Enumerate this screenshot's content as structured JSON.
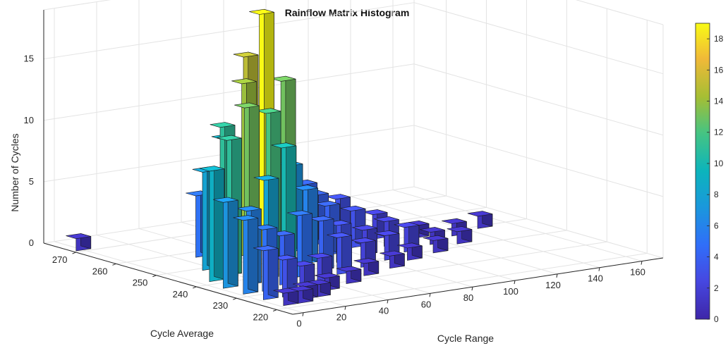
{
  "chart_data": {
    "type": "bar3d",
    "title": "Rainflow Matrix Histogram",
    "xlabel": "Cycle Range",
    "ylabel": "Cycle Average",
    "zlabel": "Number of Cycles",
    "x_ticks": [
      "0",
      "20",
      "40",
      "60",
      "80",
      "100",
      "120",
      "140",
      "160"
    ],
    "y_ticks": [
      "220",
      "230",
      "240",
      "250",
      "260",
      "270"
    ],
    "z_ticks": [
      "0",
      "5",
      "10",
      "15"
    ],
    "xlim": [
      -5,
      170
    ],
    "ylim": [
      216,
      278
    ],
    "zlim": [
      0,
      19
    ],
    "colorbar": {
      "ticks": [
        "0",
        "2",
        "4",
        "6",
        "8",
        "10",
        "12",
        "14",
        "16",
        "18"
      ],
      "range": [
        0,
        19
      ]
    },
    "grid": true,
    "bar_width": {
      "range": 7,
      "average": 2.5
    },
    "bars": [
      {
        "range": 5,
        "average": 223,
        "cycles": 1
      },
      {
        "range": 12,
        "average": 223,
        "cycles": 1
      },
      {
        "range": 18,
        "average": 225,
        "cycles": 1
      },
      {
        "range": 24,
        "average": 225,
        "cycles": 1
      },
      {
        "range": 34,
        "average": 228,
        "cycles": 1
      },
      {
        "range": 48,
        "average": 230,
        "cycles": 1
      },
      {
        "range": 62,
        "average": 233,
        "cycles": 1
      },
      {
        "range": 78,
        "average": 235,
        "cycles": 1
      },
      {
        "range": 92,
        "average": 238,
        "cycles": 1
      },
      {
        "range": 108,
        "average": 240,
        "cycles": 1
      },
      {
        "range": 125,
        "average": 243,
        "cycles": 1
      },
      {
        "range": 5,
        "average": 228,
        "cycles": 4
      },
      {
        "range": 14,
        "average": 228,
        "cycles": 3
      },
      {
        "range": 26,
        "average": 230,
        "cycles": 2
      },
      {
        "range": 40,
        "average": 233,
        "cycles": 2
      },
      {
        "range": 55,
        "average": 236,
        "cycles": 3
      },
      {
        "range": 70,
        "average": 238,
        "cycles": 2
      },
      {
        "range": 85,
        "average": 240,
        "cycles": 2
      },
      {
        "range": 100,
        "average": 243,
        "cycles": 2
      },
      {
        "range": 116,
        "average": 245,
        "cycles": 1
      },
      {
        "range": 132,
        "average": 248,
        "cycles": 1
      },
      {
        "range": 148,
        "average": 250,
        "cycles": 1
      },
      {
        "range": 5,
        "average": 233,
        "cycles": 6
      },
      {
        "range": 14,
        "average": 233,
        "cycles": 5
      },
      {
        "range": 26,
        "average": 235,
        "cycles": 4
      },
      {
        "range": 40,
        "average": 238,
        "cycles": 5
      },
      {
        "range": 54,
        "average": 240,
        "cycles": 4
      },
      {
        "range": 68,
        "average": 243,
        "cycles": 3
      },
      {
        "range": 84,
        "average": 245,
        "cycles": 2
      },
      {
        "range": 100,
        "average": 248,
        "cycles": 2
      },
      {
        "range": 118,
        "average": 250,
        "cycles": 1
      },
      {
        "range": 5,
        "average": 238,
        "cycles": 7
      },
      {
        "range": 16,
        "average": 238,
        "cycles": 6
      },
      {
        "range": 28,
        "average": 240,
        "cycles": 8
      },
      {
        "range": 42,
        "average": 243,
        "cycles": 10
      },
      {
        "range": 56,
        "average": 245,
        "cycles": 6
      },
      {
        "range": 72,
        "average": 248,
        "cycles": 4
      },
      {
        "range": 88,
        "average": 250,
        "cycles": 3
      },
      {
        "range": 104,
        "average": 253,
        "cycles": 2
      },
      {
        "range": 8,
        "average": 243,
        "cycles": 9
      },
      {
        "range": 20,
        "average": 245,
        "cycles": 11
      },
      {
        "range": 34,
        "average": 248,
        "cycles": 13
      },
      {
        "range": 48,
        "average": 250,
        "cycles": 12
      },
      {
        "range": 64,
        "average": 253,
        "cycles": 7
      },
      {
        "range": 80,
        "average": 255,
        "cycles": 4
      },
      {
        "range": 96,
        "average": 258,
        "cycles": 3
      },
      {
        "range": 18,
        "average": 250,
        "cycles": 8
      },
      {
        "range": 32,
        "average": 253,
        "cycles": 11
      },
      {
        "range": 46,
        "average": 255,
        "cycles": 14
      },
      {
        "range": 60,
        "average": 258,
        "cycles": 19
      },
      {
        "range": 74,
        "average": 260,
        "cycles": 13
      },
      {
        "range": 88,
        "average": 262,
        "cycles": 4
      },
      {
        "range": 30,
        "average": 258,
        "cycles": 5
      },
      {
        "range": 46,
        "average": 260,
        "cycles": 9
      },
      {
        "range": 62,
        "average": 263,
        "cycles": 15
      },
      {
        "range": 76,
        "average": 265,
        "cycles": 9
      },
      {
        "range": 90,
        "average": 266,
        "cycles": 3
      },
      {
        "range": 0,
        "average": 272,
        "cycles": 1
      }
    ]
  }
}
